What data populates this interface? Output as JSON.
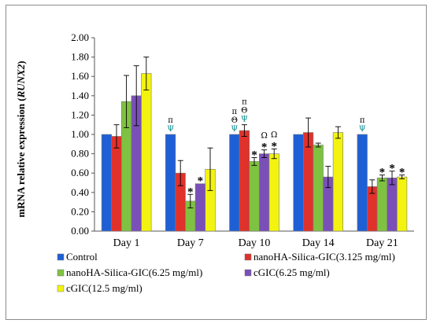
{
  "chart_data": {
    "type": "bar",
    "title": "",
    "xlabel": "",
    "ylabel": "mRNA relative expression (",
    "ylabel_gene": "RUNX2",
    "ylabel_tail": ")",
    "ylim": [
      0,
      2
    ],
    "y_ticks": [
      "0.00",
      "0.20",
      "0.40",
      "0.60",
      "0.80",
      "1.00",
      "1.20",
      "1.40",
      "1.60",
      "1.80",
      "2.00"
    ],
    "grid": false,
    "legend_position": "bottom",
    "categories": [
      "Day 1",
      "Day 7",
      "Day 10",
      "Day 14",
      "Day 21"
    ],
    "series": [
      {
        "name": "Control",
        "color": "#1f5fd6",
        "values": [
          1.0,
          1.0,
          1.0,
          1.0,
          1.0
        ],
        "errors": [
          0,
          0,
          0,
          0,
          0
        ]
      },
      {
        "name": "nanoHA-Silica-GIC(3.125 mg/ml)",
        "color": "#e0312b",
        "values": [
          0.98,
          0.6,
          1.04,
          1.02,
          0.46
        ],
        "errors": [
          0.12,
          0.13,
          0.06,
          0.15,
          0.07
        ]
      },
      {
        "name": "nanoHA-Silica-GIC(6.25 mg/ml)",
        "color": "#7fc241",
        "values": [
          1.34,
          0.31,
          0.72,
          0.89,
          0.55
        ],
        "errors": [
          0.27,
          0.07,
          0.04,
          0.02,
          0.03
        ]
      },
      {
        "name": "cGIC(6.25 mg/ml)",
        "color": "#7a50b8",
        "values": [
          1.4,
          0.49,
          0.8,
          0.56,
          0.55
        ],
        "errors": [
          0.31,
          0,
          0.04,
          0.11,
          0.07
        ]
      },
      {
        "name": "cGIC(12.5 mg/ml)",
        "color": "#f3f310",
        "values": [
          1.63,
          0.64,
          0.8,
          1.02,
          0.56
        ],
        "errors": [
          0.17,
          0.22,
          0.05,
          0.06,
          0.02
        ]
      }
    ],
    "annotations": [
      {
        "category": 1,
        "series": 0,
        "symbols": [
          "π",
          "Ψ"
        ]
      },
      {
        "category": 1,
        "series": 2,
        "symbols": [
          "*"
        ]
      },
      {
        "category": 1,
        "series": 3,
        "symbols": [
          "*"
        ]
      },
      {
        "category": 2,
        "series": 0,
        "symbols": [
          "π",
          "Θ",
          "Ψ"
        ]
      },
      {
        "category": 2,
        "series": 1,
        "symbols": [
          "π",
          "Θ",
          "Ψ"
        ]
      },
      {
        "category": 2,
        "series": 2,
        "symbols": [
          "*"
        ]
      },
      {
        "category": 2,
        "series": 3,
        "symbols": [
          "Ω",
          "*"
        ]
      },
      {
        "category": 2,
        "series": 4,
        "symbols": [
          "Ω",
          "*"
        ]
      },
      {
        "category": 4,
        "series": 0,
        "symbols": [
          "π",
          "Ψ"
        ]
      },
      {
        "category": 4,
        "series": 2,
        "symbols": [
          "*"
        ]
      },
      {
        "category": 4,
        "series": 3,
        "symbols": [
          "*"
        ]
      },
      {
        "category": 4,
        "series": 4,
        "symbols": [
          "*"
        ]
      }
    ]
  }
}
